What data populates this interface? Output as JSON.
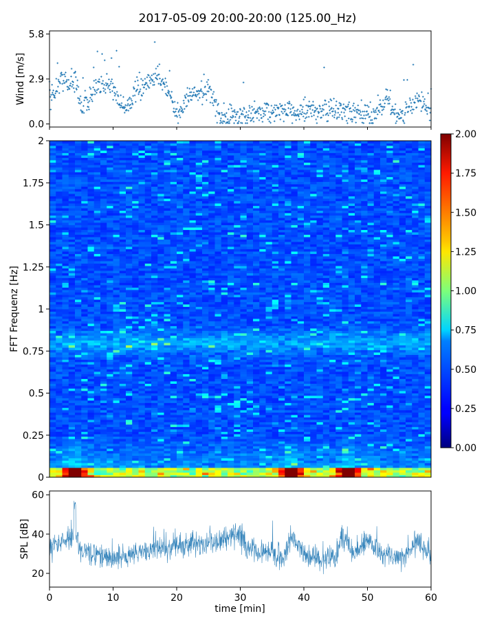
{
  "title": "2017-05-09 20:00-20:00 (125.00_Hz)",
  "colors": {
    "wind": "#1f77b4",
    "spl": "#1f77b4",
    "axis": "#000000"
  },
  "chart_data": [
    {
      "type": "scatter",
      "name": "wind",
      "ylabel": "Wind [m/s]",
      "xlim": [
        0,
        60
      ],
      "ylim": [
        -0.2,
        6.0
      ],
      "yticks": [
        0.0,
        2.9,
        5.8
      ],
      "ytick_labels": [
        "0.0",
        "2.9",
        "5.8"
      ],
      "series_shape": {
        "x": [
          0,
          2,
          3,
          4,
          5,
          7,
          9,
          10,
          12,
          14,
          16,
          17,
          19,
          20,
          22,
          24,
          25,
          27,
          30,
          33,
          36,
          38,
          40,
          43,
          46,
          48,
          51,
          53,
          55,
          58,
          60
        ],
        "y": [
          1.5,
          3.0,
          2.5,
          2.8,
          1.1,
          2.0,
          2.7,
          2.2,
          1.0,
          2.3,
          2.7,
          3.3,
          1.8,
          0.4,
          2.0,
          1.8,
          2.4,
          0.4,
          0.5,
          0.8,
          0.8,
          0.8,
          0.8,
          0.9,
          0.8,
          0.6,
          0.6,
          1.7,
          0.4,
          1.6,
          0.9
        ]
      }
    },
    {
      "type": "heatmap",
      "name": "spectrogram",
      "ylabel": "FFT Frequenz [Hz]",
      "xlim": [
        0,
        60
      ],
      "ylim": [
        0,
        2
      ],
      "yticks": [
        0,
        0.25,
        0.5,
        0.75,
        1,
        1.25,
        1.5,
        1.75,
        2
      ],
      "ytick_labels": [
        "0",
        "0.25",
        "0.5",
        "0.75",
        "1",
        "1.25",
        "1.5",
        "1.75",
        "2"
      ],
      "colorbar": {
        "range": [
          0.0,
          2.0
        ],
        "ticks": [
          "0.00",
          "0.25",
          "0.50",
          "0.75",
          "1.00",
          "1.25",
          "1.50",
          "1.75",
          "2.00"
        ],
        "colormap": "jet"
      },
      "band_hz": 0.8,
      "low_freq_hotspots_min": [
        4,
        38,
        47
      ]
    },
    {
      "type": "line",
      "name": "spl",
      "ylabel": "SPL [dB]",
      "xlabel": "time [min]",
      "xlim": [
        0,
        60
      ],
      "ylim": [
        13,
        62
      ],
      "yticks": [
        20,
        40,
        60
      ],
      "ytick_labels": [
        "20",
        "40",
        "60"
      ],
      "xticks": [
        0,
        10,
        20,
        30,
        40,
        50,
        60
      ],
      "xtick_labels": [
        "0",
        "10",
        "20",
        "30",
        "40",
        "50",
        "60"
      ],
      "series_shape": {
        "x": [
          0,
          2,
          4,
          5,
          7,
          10,
          15,
          20,
          25,
          30,
          31,
          35,
          37,
          38,
          40,
          43,
          45,
          46,
          48,
          50,
          52,
          55,
          58,
          60
        ],
        "y": [
          33,
          36,
          40,
          32,
          29,
          28,
          31,
          34,
          36,
          40,
          32,
          30,
          28,
          40,
          30,
          27,
          28,
          40,
          30,
          37,
          30,
          28,
          36,
          29
        ]
      }
    }
  ]
}
